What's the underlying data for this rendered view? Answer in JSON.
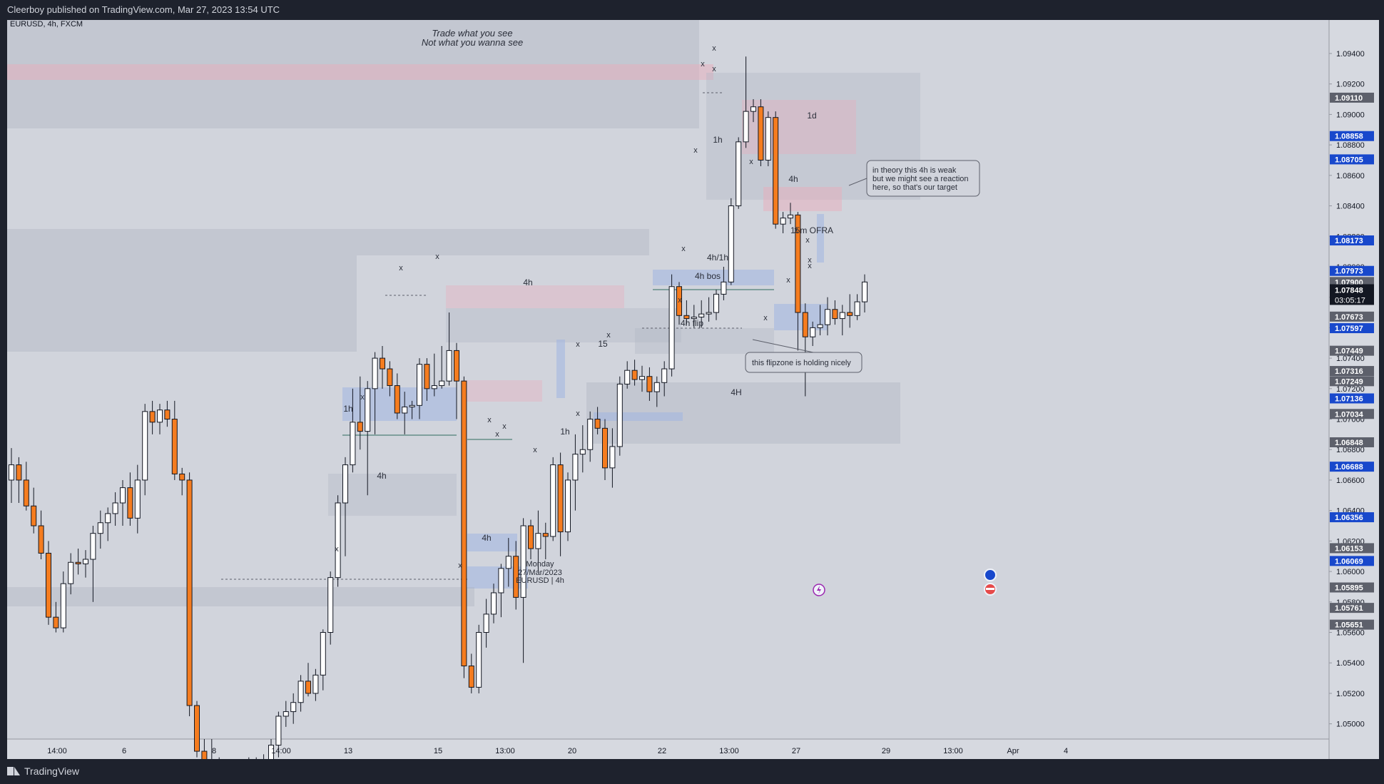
{
  "header": {
    "published": "Cleerboy published on TradingView.com, Mar 27, 2023 13:54 UTC"
  },
  "footer": {
    "brand": "TradingView"
  },
  "colors": {
    "bull": "#ffffff",
    "bear": "#f57c1f",
    "axis_bg": "#d6d9e0",
    "plot_bg": "#d1d4dc"
  },
  "chart_data": {
    "type": "candlestick",
    "symbol_label": "EURUSD, 4h, FXCM",
    "symbol": "EURUSD",
    "timeframe": "4h",
    "broker": "FXCM",
    "ylim": [
      1.049,
      1.0962
    ],
    "price_ticks": [
      "1.09400",
      "1.09200",
      "1.09000",
      "1.08800",
      "1.08600",
      "1.08400",
      "1.08200",
      "1.08000",
      "1.07800",
      "1.07600",
      "1.07400",
      "1.07200",
      "1.07000",
      "1.06800",
      "1.06600",
      "1.06400",
      "1.06200",
      "1.06000",
      "1.05800",
      "1.05600",
      "1.05400",
      "1.05200",
      "1.05000"
    ],
    "x_ticks": [
      "14:00",
      "6",
      "8",
      "14:00",
      "13",
      "15",
      "13:00",
      "20",
      "22",
      "13:00",
      "27",
      "29",
      "13:00",
      "Apr",
      "4"
    ],
    "price_labels": [
      {
        "text": "1.09110",
        "bg": "#5d606b"
      },
      {
        "text": "1.08858",
        "bg": "#1848cc"
      },
      {
        "text": "1.08705",
        "bg": "#1848cc"
      },
      {
        "text": "1.08173",
        "bg": "#1848cc"
      },
      {
        "text": "1.07973",
        "bg": "#1848cc"
      },
      {
        "text": "1.07900",
        "bg": "#5d606b"
      },
      {
        "text": "1.07848",
        "bg": "#131722"
      },
      {
        "text": "1.07673",
        "bg": "#5d606b"
      },
      {
        "text": "1.07597",
        "bg": "#1848cc"
      },
      {
        "text": "1.07449",
        "bg": "#5d606b"
      },
      {
        "text": "1.07316",
        "bg": "#5d606b"
      },
      {
        "text": "1.07249",
        "bg": "#5d606b"
      },
      {
        "text": "1.07136",
        "bg": "#1848cc"
      },
      {
        "text": "1.07034",
        "bg": "#5d606b"
      },
      {
        "text": "1.06848",
        "bg": "#5d606b"
      },
      {
        "text": "1.06688",
        "bg": "#1848cc"
      },
      {
        "text": "1.06356",
        "bg": "#1848cc"
      },
      {
        "text": "1.06153",
        "bg": "#5d606b"
      },
      {
        "text": "1.06069",
        "bg": "#1848cc"
      },
      {
        "text": "1.05895",
        "bg": "#5d606b"
      },
      {
        "text": "1.05761",
        "bg": "#5d606b"
      },
      {
        "text": "1.05651",
        "bg": "#5d606b"
      }
    ],
    "countdown": "03:05:17",
    "candles": [
      [
        1.066,
        1.0681,
        1.0645,
        1.067
      ],
      [
        1.067,
        1.0675,
        1.0645,
        1.066
      ],
      [
        1.066,
        1.0672,
        1.064,
        1.0643
      ],
      [
        1.0643,
        1.0655,
        1.0625,
        1.063
      ],
      [
        1.063,
        1.064,
        1.0608,
        1.0612
      ],
      [
        1.0612,
        1.062,
        1.0565,
        1.057
      ],
      [
        1.057,
        1.058,
        1.056,
        1.0563
      ],
      [
        1.0563,
        1.06,
        1.056,
        1.0592
      ],
      [
        1.0592,
        1.0612,
        1.0585,
        1.0606
      ],
      [
        1.0606,
        1.0615,
        1.0598,
        1.0605
      ],
      [
        1.0605,
        1.0614,
        1.0596,
        1.0608
      ],
      [
        1.0608,
        1.063,
        1.058,
        1.0625
      ],
      [
        1.0625,
        1.064,
        1.0615,
        1.0632
      ],
      [
        1.0632,
        1.0642,
        1.062,
        1.0638
      ],
      [
        1.0638,
        1.0652,
        1.063,
        1.0645
      ],
      [
        1.0645,
        1.066,
        1.063,
        1.0655
      ],
      [
        1.0655,
        1.0665,
        1.063,
        1.0635
      ],
      [
        1.0635,
        1.067,
        1.0625,
        1.066
      ],
      [
        1.066,
        1.071,
        1.065,
        1.0705
      ],
      [
        1.0705,
        1.0712,
        1.069,
        1.0698
      ],
      [
        1.0698,
        1.071,
        1.069,
        1.0706
      ],
      [
        1.0706,
        1.0712,
        1.0695,
        1.07
      ],
      [
        1.07,
        1.0712,
        1.066,
        1.0664
      ],
      [
        1.0664,
        1.0668,
        1.065,
        1.066
      ],
      [
        1.066,
        1.0665,
        1.0505,
        1.0512
      ],
      [
        1.0512,
        1.0515,
        1.0478,
        1.0482
      ],
      [
        1.0482,
        1.049,
        1.047,
        1.0476
      ],
      [
        1.0476,
        1.049,
        1.0462,
        1.047
      ],
      [
        1.047,
        1.0478,
        1.0455,
        1.046
      ],
      [
        1.046,
        1.047,
        1.0448,
        1.0464
      ],
      [
        1.0464,
        1.0473,
        1.0458,
        1.0462
      ],
      [
        1.0462,
        1.0475,
        1.0455,
        1.047
      ],
      [
        1.047,
        1.0478,
        1.046,
        1.0466
      ],
      [
        1.0466,
        1.0478,
        1.0462,
        1.0474
      ],
      [
        1.0474,
        1.048,
        1.0465,
        1.047
      ],
      [
        1.047,
        1.049,
        1.0464,
        1.0486
      ],
      [
        1.0486,
        1.0508,
        1.0478,
        1.0505
      ],
      [
        1.0505,
        1.0515,
        1.0498,
        1.0508
      ],
      [
        1.0508,
        1.052,
        1.05,
        1.0514
      ],
      [
        1.0514,
        1.0532,
        1.0508,
        1.0528
      ],
      [
        1.0528,
        1.054,
        1.0518,
        1.052
      ],
      [
        1.052,
        1.0536,
        1.0515,
        1.0532
      ],
      [
        1.0532,
        1.0562,
        1.0522,
        1.056
      ],
      [
        1.056,
        1.06,
        1.0552,
        1.0596
      ],
      [
        1.0596,
        1.065,
        1.059,
        1.0645
      ],
      [
        1.0645,
        1.0675,
        1.061,
        1.067
      ],
      [
        1.067,
        1.072,
        1.0665,
        1.0698
      ],
      [
        1.0698,
        1.0728,
        1.068,
        1.0692
      ],
      [
        1.0692,
        1.0725,
        1.065,
        1.072
      ],
      [
        1.072,
        1.0744,
        1.069,
        1.074
      ],
      [
        1.074,
        1.0748,
        1.072,
        1.0733
      ],
      [
        1.0733,
        1.0738,
        1.0715,
        1.0722
      ],
      [
        1.0722,
        1.073,
        1.07,
        1.0704
      ],
      [
        1.0704,
        1.0718,
        1.069,
        1.0708
      ],
      [
        1.0708,
        1.0712,
        1.07,
        1.0709
      ],
      [
        1.0709,
        1.074,
        1.07,
        1.0736
      ],
      [
        1.0736,
        1.074,
        1.0712,
        1.072
      ],
      [
        1.072,
        1.0743,
        1.0715,
        1.0722
      ],
      [
        1.0722,
        1.0748,
        1.072,
        1.0725
      ],
      [
        1.0725,
        1.077,
        1.0722,
        1.0745
      ],
      [
        1.0745,
        1.075,
        1.07,
        1.0725
      ],
      [
        1.0725,
        1.0728,
        1.053,
        1.0538
      ],
      [
        1.0538,
        1.0546,
        1.052,
        1.0524
      ],
      [
        1.0524,
        1.0565,
        1.052,
        1.056
      ],
      [
        1.056,
        1.0582,
        1.055,
        1.0572
      ],
      [
        1.0572,
        1.0592,
        1.0566,
        1.0586
      ],
      [
        1.0586,
        1.0605,
        1.057,
        1.0602
      ],
      [
        1.0602,
        1.0622,
        1.059,
        1.061
      ],
      [
        1.061,
        1.062,
        1.0575,
        1.0583
      ],
      [
        1.0583,
        1.0635,
        1.054,
        1.063
      ],
      [
        1.063,
        1.0634,
        1.0608,
        1.0615
      ],
      [
        1.0615,
        1.064,
        1.06,
        1.0625
      ],
      [
        1.0625,
        1.0632,
        1.0608,
        1.0623
      ],
      [
        1.0623,
        1.0675,
        1.062,
        1.067
      ],
      [
        1.067,
        1.0678,
        1.061,
        1.0626
      ],
      [
        1.0626,
        1.0665,
        1.062,
        1.066
      ],
      [
        1.066,
        1.069,
        1.064,
        1.0677
      ],
      [
        1.0677,
        1.0696,
        1.0665,
        1.068
      ],
      [
        1.068,
        1.0705,
        1.0672,
        1.07
      ],
      [
        1.07,
        1.0708,
        1.069,
        1.0694
      ],
      [
        1.0694,
        1.07,
        1.066,
        1.0668
      ],
      [
        1.0668,
        1.0694,
        1.0655,
        1.0682
      ],
      [
        1.0682,
        1.0728,
        1.0676,
        1.0723
      ],
      [
        1.0723,
        1.0738,
        1.072,
        1.0732
      ],
      [
        1.0732,
        1.0739,
        1.0722,
        1.0726
      ],
      [
        1.0726,
        1.0735,
        1.0718,
        1.0728
      ],
      [
        1.0728,
        1.0734,
        1.0712,
        1.0718
      ],
      [
        1.0718,
        1.0728,
        1.0708,
        1.0724
      ],
      [
        1.0724,
        1.0738,
        1.0715,
        1.0733
      ],
      [
        1.0733,
        1.0795,
        1.0728,
        1.0787
      ],
      [
        1.0787,
        1.079,
        1.0762,
        1.0768
      ],
      [
        1.0768,
        1.0778,
        1.0762,
        1.0766
      ],
      [
        1.0766,
        1.0775,
        1.076,
        1.0767
      ],
      [
        1.0767,
        1.0778,
        1.076,
        1.0769
      ],
      [
        1.0769,
        1.078,
        1.0764,
        1.077
      ],
      [
        1.077,
        1.0785,
        1.0765,
        1.0782
      ],
      [
        1.0782,
        1.08,
        1.0778,
        1.079
      ],
      [
        1.079,
        1.0845,
        1.0788,
        1.084
      ],
      [
        1.084,
        1.0885,
        1.0838,
        1.0882
      ],
      [
        1.0882,
        1.0938,
        1.0878,
        1.0902
      ],
      [
        1.0902,
        1.091,
        1.0895,
        1.0905
      ],
      [
        1.0905,
        1.091,
        1.0866,
        1.087
      ],
      [
        1.087,
        1.0902,
        1.0866,
        1.0898
      ],
      [
        1.0898,
        1.0902,
        1.0825,
        1.0828
      ],
      [
        1.0828,
        1.0836,
        1.0822,
        1.0832
      ],
      [
        1.0832,
        1.0842,
        1.0828,
        1.0834
      ],
      [
        1.0834,
        1.0836,
        1.0745,
        1.077
      ],
      [
        1.077,
        1.0776,
        1.0715,
        1.0754
      ],
      [
        1.0754,
        1.0764,
        1.0748,
        1.076
      ],
      [
        1.076,
        1.0775,
        1.0755,
        1.0762
      ],
      [
        1.0762,
        1.078,
        1.0755,
        1.0772
      ],
      [
        1.0772,
        1.0778,
        1.0762,
        1.0766
      ],
      [
        1.0766,
        1.0775,
        1.0755,
        1.077
      ],
      [
        1.077,
        1.0782,
        1.076,
        1.0768
      ],
      [
        1.0768,
        1.0782,
        1.0765,
        1.0777
      ],
      [
        1.0777,
        1.0795,
        1.077,
        1.079
      ]
    ],
    "zones": [
      {
        "price": [
          1.0878,
          1.096
        ],
        "color": "gray"
      },
      {
        "price": [
          1.0842,
          1.093
        ],
        "color": "gray"
      },
      {
        "price": [
          1.0805,
          1.0825
        ],
        "color": "red"
      },
      {
        "price": [
          1.0756,
          1.081
        ],
        "color": "gray"
      },
      {
        "price": [
          1.0632,
          1.0745
        ],
        "color": "blue"
      },
      {
        "price": [
          1.074,
          1.08
        ],
        "color": "gray"
      },
      {
        "price": [
          1.0525,
          1.0585
        ],
        "color": "blue"
      }
    ],
    "annotations": [
      {
        "text": "Trade what you see",
        "kind": "italic"
      },
      {
        "text": "Not what you wanna see",
        "kind": "italic"
      },
      {
        "text": "1d"
      },
      {
        "text": "1h"
      },
      {
        "text": "4h"
      },
      {
        "text": "15m OFRA"
      },
      {
        "text": "4h/1h"
      },
      {
        "text": "4h bos"
      },
      {
        "text": "4h"
      },
      {
        "text": "4h flip"
      },
      {
        "text": "15"
      },
      {
        "text": "4H"
      },
      {
        "text": "1h"
      },
      {
        "text": "1h"
      },
      {
        "text": "4h"
      },
      {
        "text": "4h"
      },
      {
        "text": "Monday"
      },
      {
        "text": "27/Mar/2023"
      },
      {
        "text": "EURUSD | 4h"
      }
    ],
    "callouts": [
      {
        "lines": [
          "in theory this 4h is weak",
          "but we might see a reaction",
          "here, so that's our target"
        ]
      },
      {
        "lines": [
          "this flipzone is holding nicely"
        ]
      }
    ]
  }
}
